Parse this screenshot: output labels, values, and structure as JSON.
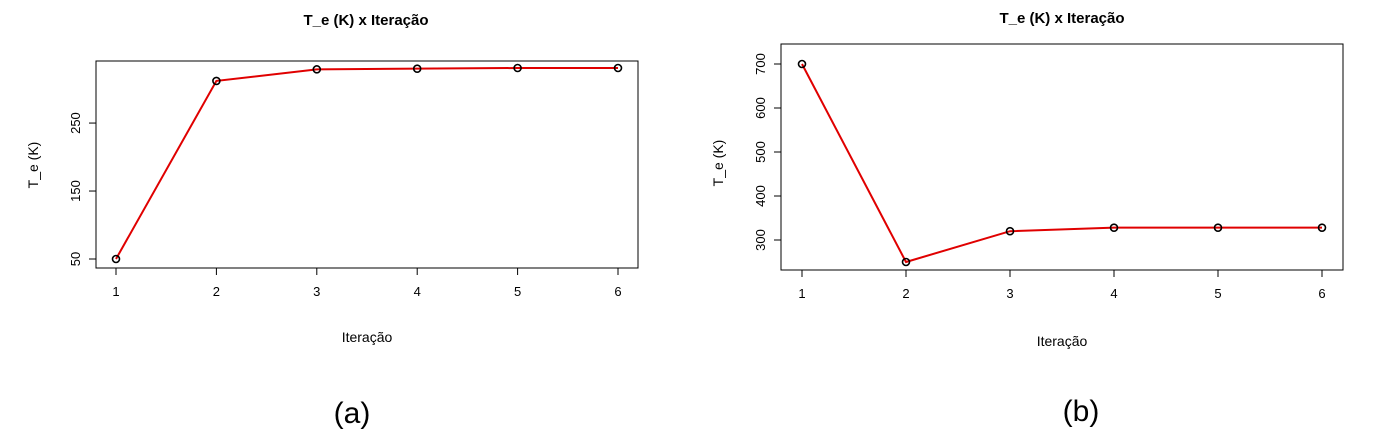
{
  "chart_data": [
    {
      "type": "line",
      "title": "T_e (K) x Iteração",
      "xlabel": "Iteração",
      "ylabel": "T_e (K)",
      "caption": "(a)",
      "x": [
        1,
        2,
        3,
        4,
        5,
        6
      ],
      "series": [
        {
          "values": [
            50,
            312,
            329,
            330,
            331,
            331
          ]
        }
      ],
      "xticks": [
        1,
        2,
        3,
        4,
        5,
        6
      ],
      "yticks": [
        50,
        150,
        250
      ],
      "xlim": [
        1,
        6
      ],
      "ylim": [
        50,
        331
      ],
      "grid": false,
      "line_color": "#e00000",
      "marker": "open-circle"
    },
    {
      "type": "line",
      "title": "T_e (K) x Iteração",
      "xlabel": "Iteração",
      "ylabel": "T_e (K)",
      "caption": "(b)",
      "x": [
        1,
        2,
        3,
        4,
        5,
        6
      ],
      "series": [
        {
          "values": [
            700,
            250,
            320,
            328,
            328,
            328
          ]
        }
      ],
      "xticks": [
        1,
        2,
        3,
        4,
        5,
        6
      ],
      "yticks": [
        300,
        400,
        500,
        600,
        700
      ],
      "xlim": [
        1,
        6
      ],
      "ylim": [
        250,
        700
      ],
      "grid": false,
      "line_color": "#e00000",
      "marker": "open-circle"
    }
  ]
}
